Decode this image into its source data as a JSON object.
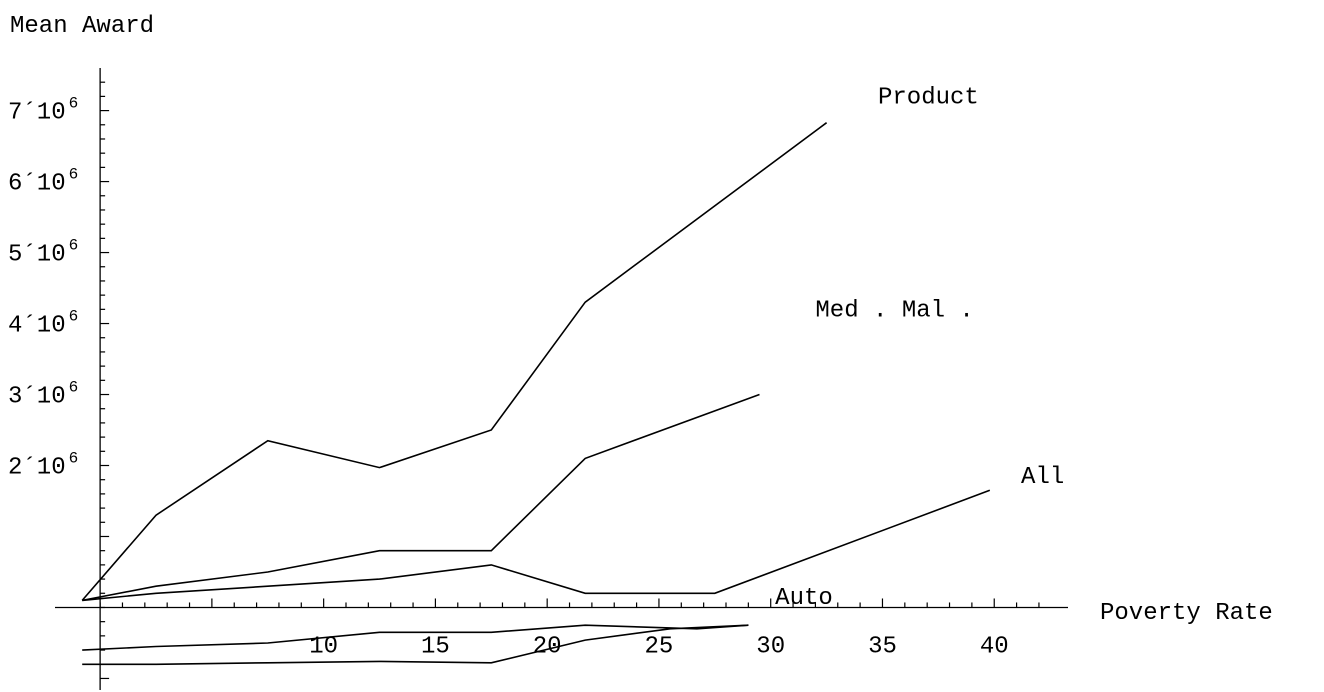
{
  "chart_data": {
    "type": "line",
    "ylabel": "Mean  Award",
    "xlabel": "Poverty  Rate",
    "xlim": [
      -0.9,
      43.3
    ],
    "ylim": [
      -1050000,
      7600000
    ],
    "x_ticks": [
      10,
      15,
      20,
      25,
      30,
      35,
      40
    ],
    "x_tick_labels": [
      "10",
      "15",
      "20",
      "25",
      "30",
      "35",
      "40"
    ],
    "y_ticks": [
      {
        "value": 2000000,
        "mantissa": "2",
        "times": "´",
        "base": "10",
        "exp": "6"
      },
      {
        "value": 3000000,
        "mantissa": "3",
        "times": "´",
        "base": "10",
        "exp": "6"
      },
      {
        "value": 4000000,
        "mantissa": "4",
        "times": "´",
        "base": "10",
        "exp": "6"
      },
      {
        "value": 5000000,
        "mantissa": "5",
        "times": "´",
        "base": "10",
        "exp": "6"
      },
      {
        "value": 6000000,
        "mantissa": "6",
        "times": "´",
        "base": "10",
        "exp": "6"
      },
      {
        "value": 7000000,
        "mantissa": "7",
        "times": "´",
        "base": "10",
        "exp": "6"
      }
    ],
    "series": [
      {
        "name": "Product",
        "x": [
          -0.8,
          2.5,
          7.5,
          12.5,
          17.5,
          21.7,
          32.5
        ],
        "y": [
          100000,
          1300000,
          2350000,
          1970000,
          2500000,
          4300000,
          6830000
        ]
      },
      {
        "name": "Med . Mal .",
        "x": [
          -0.8,
          2.5,
          7.5,
          12.5,
          17.5,
          21.7,
          29.5
        ],
        "y": [
          100000,
          300000,
          500000,
          800000,
          800000,
          2100000,
          3000000
        ]
      },
      {
        "name": "All",
        "x": [
          -0.8,
          2.5,
          7.5,
          12.5,
          17.5,
          21.7,
          27.5,
          39.8
        ],
        "y": [
          100000,
          200000,
          300000,
          400000,
          600000,
          200000,
          200000,
          1650000
        ]
      },
      {
        "name": "Auto",
        "x": [
          -0.8,
          2.5,
          7.5,
          12.5,
          17.5,
          21.7,
          26.7,
          29
        ],
        "y": [
          -600000,
          -550000,
          -500000,
          -350000,
          -350000,
          -250000,
          -300000,
          -250000
        ]
      },
      {
        "name": "",
        "x": [
          -0.8,
          2.5,
          7.5,
          12.5,
          17.5,
          21.7,
          25.5,
          29
        ],
        "y": [
          -800000,
          -800000,
          -780000,
          -760000,
          -780000,
          -460000,
          -300000,
          -250000
        ]
      }
    ],
    "annotations": [
      {
        "text": "Product",
        "x": 34.8,
        "y": 7100000
      },
      {
        "text": "Med . Mal .",
        "x": 32,
        "y": 4100000
      },
      {
        "text": "All",
        "x": 41.2,
        "y": 1750000
      },
      {
        "text": "Auto",
        "x": 30.2,
        "y": 50000
      }
    ],
    "grid": false,
    "legend": "none"
  }
}
